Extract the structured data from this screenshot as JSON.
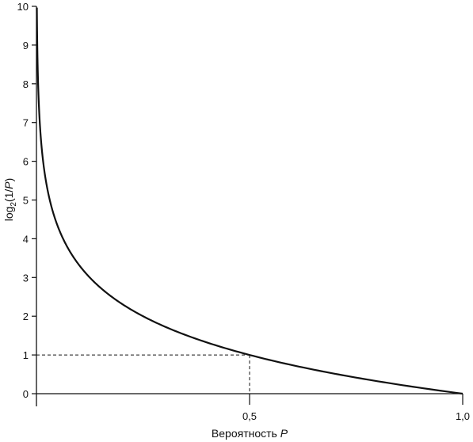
{
  "chart_data": {
    "type": "line",
    "title": "",
    "xlabel": {
      "text": "Вероятность ",
      "var": "P"
    },
    "ylabel": {
      "prefix": "log",
      "sub": "2",
      "mid": "(1/",
      "var": "P",
      "suffix": ")"
    },
    "xlim": [
      0,
      1
    ],
    "ylim": [
      0,
      10
    ],
    "x_ticks": [
      {
        "value": 0.5,
        "label": "0,5"
      },
      {
        "value": 1.0,
        "label": "1,0"
      }
    ],
    "y_ticks": [
      {
        "value": 0,
        "label": "0"
      },
      {
        "value": 1,
        "label": "1"
      },
      {
        "value": 2,
        "label": "2"
      },
      {
        "value": 3,
        "label": "3"
      },
      {
        "value": 4,
        "label": "4"
      },
      {
        "value": 5,
        "label": "5"
      },
      {
        "value": 6,
        "label": "6"
      },
      {
        "value": 7,
        "label": "7"
      },
      {
        "value": 8,
        "label": "8"
      },
      {
        "value": 9,
        "label": "9"
      },
      {
        "value": 10,
        "label": "10"
      }
    ],
    "grid": false,
    "series": [
      {
        "function": "log2(1/P)",
        "x": [
          0.001,
          0.002,
          0.004,
          0.006,
          0.01,
          0.015,
          0.02,
          0.03,
          0.04,
          0.05,
          0.07,
          0.1,
          0.125,
          0.15,
          0.2,
          0.25,
          0.3,
          0.35,
          0.4,
          0.45,
          0.5,
          0.55,
          0.6,
          0.65,
          0.7,
          0.75,
          0.8,
          0.85,
          0.9,
          0.95,
          1.0
        ],
        "y": [
          9.97,
          8.97,
          7.97,
          7.38,
          6.64,
          6.06,
          5.64,
          5.06,
          4.64,
          4.32,
          3.84,
          3.32,
          3.0,
          2.74,
          2.32,
          2.0,
          1.74,
          1.51,
          1.32,
          1.15,
          1.0,
          0.86,
          0.74,
          0.62,
          0.51,
          0.42,
          0.32,
          0.23,
          0.15,
          0.07,
          0.0
        ]
      }
    ],
    "annotations": [
      {
        "type": "dashed-guide",
        "x": 0.5,
        "y": 1.0
      }
    ]
  }
}
